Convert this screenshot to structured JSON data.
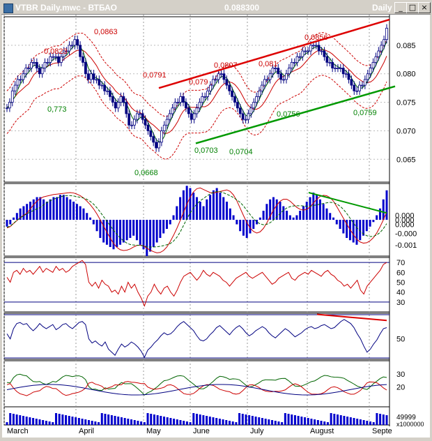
{
  "window": {
    "title": "VTBR Daily.mwc - ВТБАО",
    "last_value": "0.088300",
    "period": "Daily",
    "buttons": [
      "minimize",
      "maximize",
      "close"
    ]
  },
  "colors": {
    "titlebar": "#d4d0c8",
    "price_bar": "#000080",
    "ma_fast": "#006400",
    "ma_slow": "#cc0000",
    "envelope": "#cc0000",
    "trend_upper": "#dd0000",
    "trend_lower": "#009900",
    "histogram": "#0000cc",
    "rsi": "#cc0000",
    "stoch": "#000080",
    "vol_bars": "#0000cc"
  },
  "chart_data": {
    "type": "line",
    "x_axis_months": [
      "March",
      "April",
      "May",
      "June",
      "July",
      "August",
      "Septe"
    ],
    "panels": [
      {
        "name": "price",
        "ylim": [
          0.061,
          0.09
        ],
        "y_ticks": [
          "0.085",
          "0.080",
          "0.075",
          "0.070",
          "0.065"
        ],
        "series": [
          {
            "values": [
              0.074,
              0.075,
              0.077,
              0.078,
              0.079,
              0.079,
              0.08,
              0.081,
              0.081,
              0.082,
              0.082,
              0.081,
              0.08,
              0.081,
              0.082,
              0.082,
              0.083,
              0.083,
              0.083,
              0.082,
              0.083,
              0.084,
              0.084,
              0.085,
              0.085,
              0.086,
              0.085,
              0.083,
              0.082,
              0.08,
              0.079,
              0.08,
              0.079,
              0.079,
              0.078,
              0.078,
              0.077,
              0.077,
              0.076,
              0.075,
              0.074,
              0.075,
              0.076,
              0.075,
              0.073,
              0.071,
              0.071,
              0.072,
              0.073,
              0.073,
              0.072,
              0.071,
              0.07,
              0.069,
              0.068,
              0.067,
              0.068,
              0.07,
              0.071,
              0.072,
              0.073,
              0.074,
              0.075,
              0.075,
              0.076,
              0.075,
              0.074,
              0.073,
              0.072,
              0.073,
              0.074,
              0.075,
              0.076,
              0.076,
              0.077,
              0.078,
              0.079,
              0.079,
              0.08,
              0.08,
              0.079,
              0.078,
              0.077,
              0.076,
              0.075,
              0.074,
              0.073,
              0.072,
              0.072,
              0.073,
              0.074,
              0.075,
              0.076,
              0.077,
              0.078,
              0.079,
              0.079,
              0.08,
              0.081,
              0.081,
              0.08,
              0.079,
              0.079,
              0.08,
              0.081,
              0.082,
              0.082,
              0.083,
              0.083,
              0.084,
              0.084,
              0.084,
              0.085,
              0.085,
              0.085,
              0.084,
              0.084,
              0.083,
              0.082,
              0.082,
              0.081,
              0.081,
              0.081,
              0.081,
              0.08,
              0.08,
              0.079,
              0.078,
              0.077,
              0.077,
              0.078,
              0.078,
              0.079,
              0.08,
              0.081,
              0.082,
              0.083,
              0.084,
              0.085,
              0.086,
              0.088
            ]
          }
        ],
        "annotations": [
          {
            "text": "0,0863",
            "color": "red"
          },
          {
            "text": "0,0823",
            "color": "red"
          },
          {
            "text": "0,0791",
            "color": "red"
          },
          {
            "text": "0,079",
            "color": "red"
          },
          {
            "text": "0,0807",
            "color": "red"
          },
          {
            "text": "0,081",
            "color": "red"
          },
          {
            "text": "0,0856",
            "color": "red"
          },
          {
            "text": "0,773",
            "color": "green"
          },
          {
            "text": "0,0668",
            "color": "green"
          },
          {
            "text": "0,0703",
            "color": "green"
          },
          {
            "text": "0,0704",
            "color": "green"
          },
          {
            "text": "0,0756",
            "color": "green"
          },
          {
            "text": "0,0759",
            "color": "green"
          }
        ]
      },
      {
        "name": "macd",
        "y_ticks": [
          "0.000",
          "0.000",
          "0.000",
          "-0.000",
          "-0.001"
        ],
        "ylim": [
          -0.0016,
          0.0016
        ],
        "histogram": [
          -0.0003,
          -0.0002,
          0.0001,
          0.0003,
          0.0005,
          0.0006,
          0.0007,
          0.0008,
          0.0009,
          0.001,
          0.001,
          0.0009,
          0.0008,
          0.0009,
          0.001,
          0.001,
          0.0011,
          0.0011,
          0.001,
          0.0009,
          0.0008,
          0.0007,
          0.0006,
          0.0005,
          0.0003,
          0.0001,
          -0.0002,
          -0.0005,
          -0.0008,
          -0.001,
          -0.0011,
          -0.0012,
          -0.0013,
          -0.0012,
          -0.0011,
          -0.001,
          -0.0009,
          -0.0008,
          -0.0007,
          -0.0009,
          -0.0011,
          -0.0013,
          -0.0016,
          -0.0014,
          -0.0012,
          -0.001,
          -0.0008,
          -0.0006,
          -0.0004,
          -0.0002,
          0.0002,
          0.0006,
          0.001,
          0.0013,
          0.0015,
          0.0014,
          0.0012,
          0.001,
          0.0008,
          0.0006,
          0.0009,
          0.0011,
          0.0013,
          0.0014,
          0.0012,
          0.001,
          0.0008,
          0.0005,
          0.0002,
          -0.0002,
          -0.0005,
          -0.0007,
          -0.0008,
          -0.0006,
          -0.0004,
          -0.0002,
          0.0001,
          0.0004,
          0.0007,
          0.0009,
          0.001,
          0.0009,
          0.0008,
          0.0006,
          0.0004,
          0.0002,
          0.0001,
          0.0002,
          0.0004,
          0.0006,
          0.0008,
          0.001,
          0.0012,
          0.0011,
          0.0009,
          0.0007,
          0.0005,
          0.0003,
          0.0001,
          -0.0002,
          -0.0004,
          -0.0006,
          -0.0008,
          -0.0009,
          -0.001,
          -0.0011,
          -0.0009,
          -0.0007,
          -0.0005,
          -0.0003,
          -0.0001,
          0.0002,
          0.0005,
          0.0009,
          0.0013
        ]
      },
      {
        "name": "rsi",
        "ylim": [
          20,
          75
        ],
        "y_ticks": [
          "70",
          "60",
          "50",
          "40",
          "30"
        ],
        "values": [
          55,
          50,
          60,
          62,
          58,
          64,
          60,
          62,
          58,
          62,
          66,
          60,
          64,
          62,
          60,
          66,
          62,
          64,
          60,
          62,
          66,
          68,
          70,
          72,
          68,
          50,
          46,
          50,
          44,
          52,
          48,
          46,
          40,
          42,
          38,
          46,
          40,
          50,
          44,
          48,
          40,
          34,
          26,
          36,
          40,
          48,
          42,
          38,
          44,
          46,
          40,
          36,
          42,
          50,
          56,
          58,
          60,
          56,
          52,
          56,
          62,
          58,
          56,
          60,
          58,
          56,
          52,
          50,
          46,
          50,
          54,
          56,
          58,
          60,
          56,
          54,
          56,
          58,
          60,
          56,
          52,
          48,
          50,
          54,
          56,
          58,
          60,
          54,
          52,
          56,
          58,
          60,
          58,
          62,
          60,
          58,
          56,
          60,
          62,
          58,
          56,
          52,
          50,
          46,
          48,
          44,
          48,
          52,
          42,
          38,
          46,
          50,
          54,
          58,
          62,
          68,
          70
        ]
      },
      {
        "name": "stochastic",
        "ylim": [
          10,
          100
        ],
        "y_ticks": [
          "50"
        ],
        "values": [
          60,
          50,
          70,
          80,
          82,
          78,
          80,
          72,
          66,
          72,
          80,
          74,
          70,
          74,
          78,
          68,
          72,
          78,
          80,
          74,
          70,
          76,
          82,
          84,
          78,
          50,
          42,
          46,
          40,
          36,
          44,
          30,
          24,
          18,
          30,
          40,
          34,
          38,
          44,
          40,
          34,
          26,
          14,
          28,
          34,
          42,
          48,
          56,
          62,
          58,
          60,
          66,
          74,
          80,
          84,
          78,
          72,
          66,
          56,
          48,
          46,
          50,
          58,
          64,
          72,
          76,
          70,
          64,
          58,
          66,
          72,
          76,
          70,
          62,
          56,
          60,
          66,
          70,
          74,
          70,
          62,
          56,
          52,
          58,
          64,
          70,
          66,
          60,
          54,
          58,
          62,
          68,
          72,
          74,
          70,
          72,
          76,
          78,
          74,
          70,
          72,
          78,
          84,
          88,
          84,
          80,
          72,
          60,
          50,
          36,
          24,
          30,
          40,
          48,
          60,
          70,
          72
        ]
      },
      {
        "name": "adx",
        "y_ticks": [
          "30",
          "20"
        ]
      },
      {
        "name": "volume",
        "y_ticks": [
          "49999"
        ],
        "unit_label": "x1000000"
      }
    ]
  }
}
